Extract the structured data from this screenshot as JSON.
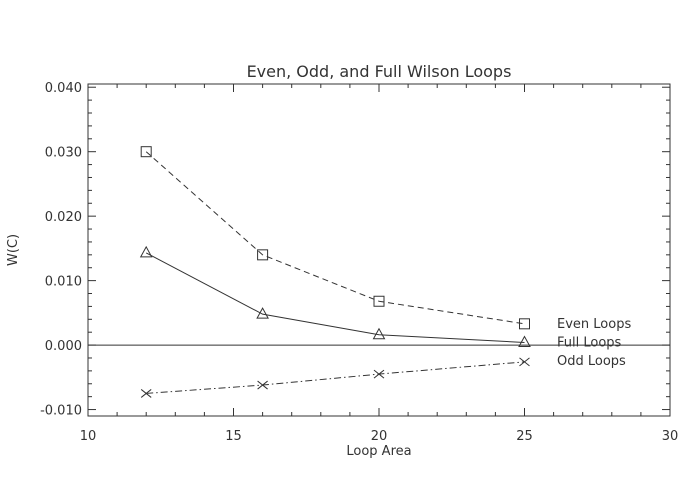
{
  "chart_data": {
    "type": "line",
    "title": "Even, Odd, and Full Wilson Loops",
    "xlabel": "Loop Area",
    "ylabel": "W(C)",
    "xlim": [
      10,
      30
    ],
    "ylim": [
      -0.011,
      0.0405
    ],
    "x_ticks": [
      10,
      15,
      20,
      25,
      30
    ],
    "x_tick_labels": [
      "10",
      "15",
      "20",
      "25",
      "30"
    ],
    "y_ticks": [
      -0.01,
      0.0,
      0.01,
      0.02,
      0.03,
      0.04
    ],
    "y_tick_labels": [
      "-0.010",
      "0.000",
      "0.010",
      "0.020",
      "0.030",
      "0.040"
    ],
    "grid": false,
    "zero_line": true,
    "x": [
      12,
      16,
      20,
      25
    ],
    "series": [
      {
        "name": "Even Loops",
        "marker": "square",
        "line_style": "dashed",
        "values": [
          0.03,
          0.014,
          0.0068,
          0.0033
        ]
      },
      {
        "name": "Full Loops",
        "marker": "triangle",
        "line_style": "solid",
        "values": [
          0.0143,
          0.0048,
          0.0016,
          0.0004
        ]
      },
      {
        "name": "Odd Loops",
        "marker": "cross",
        "line_style": "dash-dot",
        "values": [
          -0.0075,
          -0.0062,
          -0.0045,
          -0.0026
        ]
      }
    ]
  }
}
